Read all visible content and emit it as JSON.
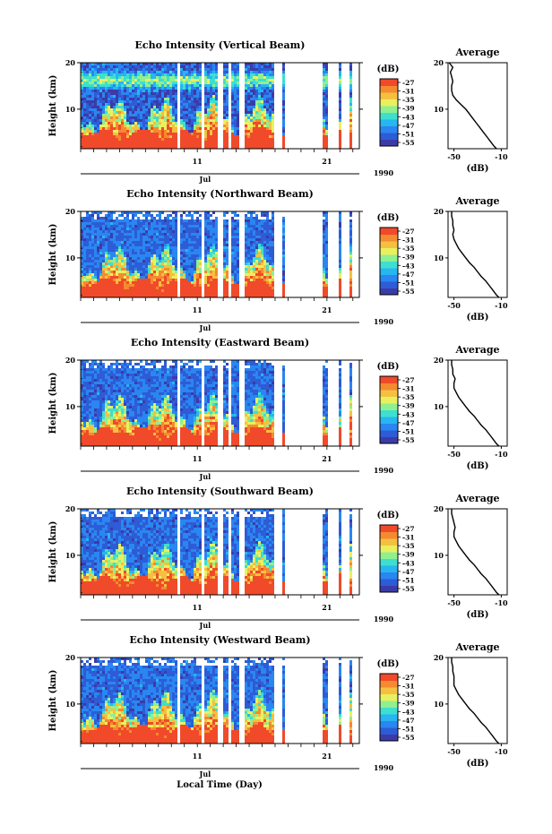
{
  "chart_data": {
    "type": "heatmap",
    "panels": [
      {
        "title": "Echo Intensity (Vertical Beam)",
        "profile": [
          [
            20,
            -54
          ],
          [
            19,
            -51
          ],
          [
            18,
            -53
          ],
          [
            17,
            -52
          ],
          [
            16,
            -51
          ],
          [
            15,
            -52
          ],
          [
            14,
            -52
          ],
          [
            13,
            -51
          ],
          [
            12,
            -48
          ],
          [
            11,
            -44
          ],
          [
            10,
            -40
          ],
          [
            9,
            -37
          ],
          [
            8,
            -34
          ],
          [
            7,
            -31
          ],
          [
            6,
            -28
          ],
          [
            5,
            -25
          ],
          [
            4,
            -22
          ],
          [
            3,
            -19
          ],
          [
            2,
            -16
          ],
          [
            1.5,
            -14
          ]
        ]
      },
      {
        "title": "Echo Intensity (Northward Beam)",
        "profile": [
          [
            20,
            -52
          ],
          [
            19,
            -52
          ],
          [
            18,
            -51
          ],
          [
            17,
            -51
          ],
          [
            16,
            -50
          ],
          [
            15,
            -51
          ],
          [
            14,
            -50
          ],
          [
            13,
            -48
          ],
          [
            12,
            -46
          ],
          [
            11,
            -43
          ],
          [
            10,
            -40
          ],
          [
            9,
            -37
          ],
          [
            8,
            -33
          ],
          [
            7,
            -30
          ],
          [
            6,
            -27
          ],
          [
            5,
            -23
          ],
          [
            4,
            -20
          ],
          [
            3,
            -17
          ],
          [
            2,
            -14
          ],
          [
            1.5,
            -12
          ]
        ]
      },
      {
        "title": "Echo Intensity (Eastward Beam)",
        "profile": [
          [
            20,
            -52
          ],
          [
            19,
            -52
          ],
          [
            18,
            -51
          ],
          [
            17,
            -51
          ],
          [
            16,
            -49
          ],
          [
            15,
            -50
          ],
          [
            14,
            -50
          ],
          [
            13,
            -48
          ],
          [
            12,
            -46
          ],
          [
            11,
            -43
          ],
          [
            10,
            -40
          ],
          [
            9,
            -37
          ],
          [
            8,
            -33
          ],
          [
            7,
            -30
          ],
          [
            6,
            -27
          ],
          [
            5,
            -23
          ],
          [
            4,
            -20
          ],
          [
            3,
            -17
          ],
          [
            2,
            -14
          ],
          [
            1.5,
            -12
          ]
        ]
      },
      {
        "title": "Echo Intensity (Southward Beam)",
        "profile": [
          [
            20,
            -52
          ],
          [
            19,
            -52
          ],
          [
            18,
            -51
          ],
          [
            17,
            -50
          ],
          [
            16,
            -49
          ],
          [
            15,
            -50
          ],
          [
            14,
            -50
          ],
          [
            13,
            -48
          ],
          [
            12,
            -46
          ],
          [
            11,
            -43
          ],
          [
            10,
            -40
          ],
          [
            9,
            -37
          ],
          [
            8,
            -33
          ],
          [
            7,
            -30
          ],
          [
            6,
            -27
          ],
          [
            5,
            -23
          ],
          [
            4,
            -20
          ],
          [
            3,
            -17
          ],
          [
            2,
            -14
          ],
          [
            1.5,
            -12
          ]
        ]
      },
      {
        "title": "Echo Intensity (Westward Beam)",
        "profile": [
          [
            20,
            -52
          ],
          [
            19,
            -52
          ],
          [
            18,
            -51
          ],
          [
            17,
            -51
          ],
          [
            16,
            -50
          ],
          [
            15,
            -50
          ],
          [
            14,
            -50
          ],
          [
            13,
            -48
          ],
          [
            12,
            -46
          ],
          [
            11,
            -43
          ],
          [
            10,
            -40
          ],
          [
            9,
            -37
          ],
          [
            8,
            -33
          ],
          [
            7,
            -30
          ],
          [
            6,
            -27
          ],
          [
            5,
            -23
          ],
          [
            4,
            -20
          ],
          [
            3,
            -17
          ],
          [
            2,
            -14
          ],
          [
            1.5,
            -12
          ]
        ]
      }
    ],
    "y_label": "Height (km)",
    "y_ticks": [
      10,
      20
    ],
    "y_range": [
      1.5,
      20
    ],
    "x_ticks": [
      "11",
      "21"
    ],
    "x_range_day": [
      2,
      23.5
    ],
    "month_label": "Jul",
    "year_label": "1990",
    "x_label": "Local Time (Day)",
    "colorbar_unit": "(dB)",
    "colorbar_ticks": [
      "-27",
      "-31",
      "-35",
      "-39",
      "-43",
      "-47",
      "-51",
      "-55"
    ],
    "colormap": [
      "#3b3ba8",
      "#2d5cd6",
      "#2a86f0",
      "#27b6f0",
      "#3ddfd0",
      "#8ff090",
      "#e9f060",
      "#f5c040",
      "#f58a30",
      "#f04a2a"
    ],
    "average_title": "Average",
    "average_x_ticks": [
      "-50",
      "-10"
    ],
    "average_x_range": [
      -55,
      -5
    ],
    "average_y_ticks": [
      "10",
      "20"
    ],
    "average_x_label": "(dB)",
    "data_gaps_day": [
      [
        9.4,
        9.5
      ],
      [
        11.2,
        11.35
      ],
      [
        12.5,
        12.8
      ],
      [
        13.2,
        13.5
      ],
      [
        14.1,
        14.5
      ],
      [
        16.9,
        17.1
      ],
      [
        17.3,
        17.5
      ],
      [
        18.2,
        18.4
      ],
      [
        18.9,
        19.1
      ],
      [
        19.8,
        20.6
      ],
      [
        21.0,
        21.8
      ],
      [
        22.3,
        22.7
      ]
    ]
  }
}
